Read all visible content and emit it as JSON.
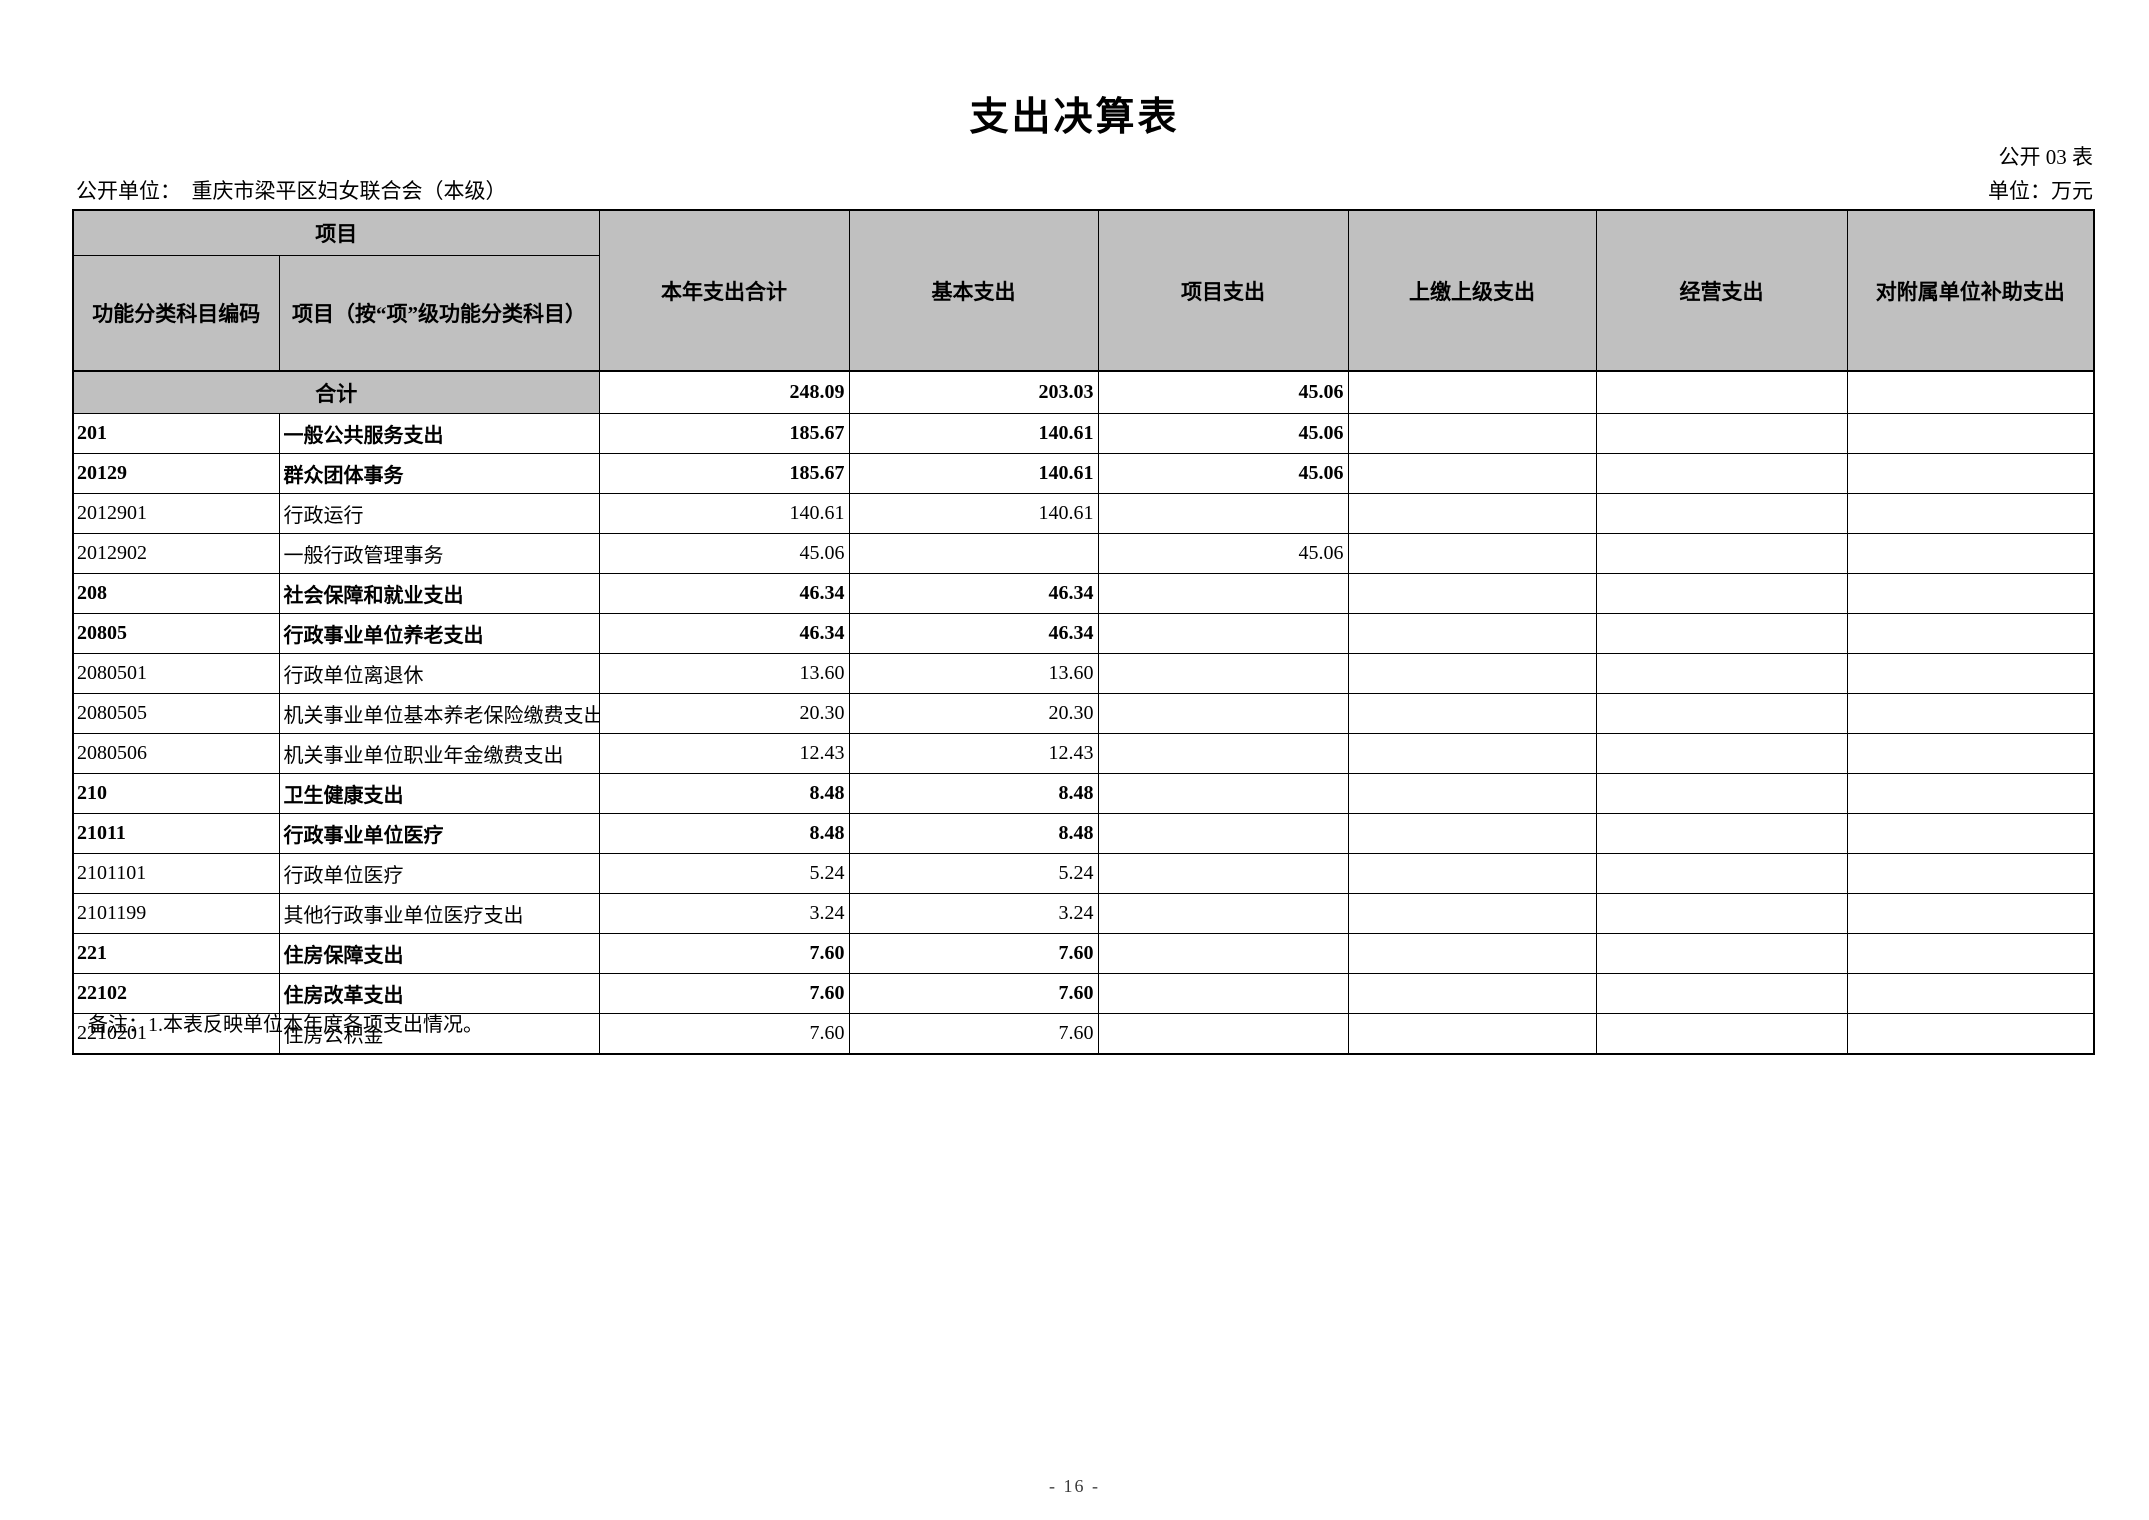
{
  "page": {
    "title": "支出决算表",
    "table_code": "公开 03 表",
    "publish_unit_line": "公开单位：　重庆市梁平区妇女联合会（本级）",
    "unit_of_measure": "单位：万元",
    "footer_note": "备注：1.本表反映单位本年度各项支出情况。",
    "page_number": "- 16 -"
  },
  "colors": {
    "header_bg": "#c0c0c0",
    "border": "#000000",
    "page_bg": "#ffffff"
  },
  "table": {
    "header": {
      "project_group": "项目",
      "col_code": "功能分类科目编码",
      "col_item": "项目（按“项”级功能分类科目）",
      "col_year_total": "本年支出合计",
      "col_basic": "基本支出",
      "col_project": "项目支出",
      "col_upper": "上缴上级支出",
      "col_operating": "经营支出",
      "col_subsidy": "对附属单位补助支出"
    },
    "total_row": {
      "label": "合计",
      "year_total": "248.09",
      "basic": "203.03",
      "project": "45.06",
      "upper": "",
      "operating": "",
      "subsidy": ""
    },
    "rows": [
      {
        "code": "201",
        "name": "一般公共服务支出",
        "year_total": "185.67",
        "basic": "140.61",
        "project": "45.06",
        "upper": "",
        "operating": "",
        "subsidy": "",
        "bold": true
      },
      {
        "code": "20129",
        "name": "群众团体事务",
        "year_total": "185.67",
        "basic": "140.61",
        "project": "45.06",
        "upper": "",
        "operating": "",
        "subsidy": "",
        "bold": true
      },
      {
        "code": "2012901",
        "name": "行政运行",
        "year_total": "140.61",
        "basic": "140.61",
        "project": "",
        "upper": "",
        "operating": "",
        "subsidy": "",
        "bold": false
      },
      {
        "code": "2012902",
        "name": "一般行政管理事务",
        "year_total": "45.06",
        "basic": "",
        "project": "45.06",
        "upper": "",
        "operating": "",
        "subsidy": "",
        "bold": false
      },
      {
        "code": "208",
        "name": "社会保障和就业支出",
        "year_total": "46.34",
        "basic": "46.34",
        "project": "",
        "upper": "",
        "operating": "",
        "subsidy": "",
        "bold": true
      },
      {
        "code": "20805",
        "name": "行政事业单位养老支出",
        "year_total": "46.34",
        "basic": "46.34",
        "project": "",
        "upper": "",
        "operating": "",
        "subsidy": "",
        "bold": true
      },
      {
        "code": "2080501",
        "name": "行政单位离退休",
        "year_total": "13.60",
        "basic": "13.60",
        "project": "",
        "upper": "",
        "operating": "",
        "subsidy": "",
        "bold": false
      },
      {
        "code": "2080505",
        "name": "机关事业单位基本养老保险缴费支出",
        "year_total": "20.30",
        "basic": "20.30",
        "project": "",
        "upper": "",
        "operating": "",
        "subsidy": "",
        "bold": false
      },
      {
        "code": "2080506",
        "name": "机关事业单位职业年金缴费支出",
        "year_total": "12.43",
        "basic": "12.43",
        "project": "",
        "upper": "",
        "operating": "",
        "subsidy": "",
        "bold": false
      },
      {
        "code": "210",
        "name": "卫生健康支出",
        "year_total": "8.48",
        "basic": "8.48",
        "project": "",
        "upper": "",
        "operating": "",
        "subsidy": "",
        "bold": true
      },
      {
        "code": "21011",
        "name": "行政事业单位医疗",
        "year_total": "8.48",
        "basic": "8.48",
        "project": "",
        "upper": "",
        "operating": "",
        "subsidy": "",
        "bold": true
      },
      {
        "code": "2101101",
        "name": "行政单位医疗",
        "year_total": "5.24",
        "basic": "5.24",
        "project": "",
        "upper": "",
        "operating": "",
        "subsidy": "",
        "bold": false
      },
      {
        "code": "2101199",
        "name": "其他行政事业单位医疗支出",
        "year_total": "3.24",
        "basic": "3.24",
        "project": "",
        "upper": "",
        "operating": "",
        "subsidy": "",
        "bold": false
      },
      {
        "code": "221",
        "name": "住房保障支出",
        "year_total": "7.60",
        "basic": "7.60",
        "project": "",
        "upper": "",
        "operating": "",
        "subsidy": "",
        "bold": true
      },
      {
        "code": "22102",
        "name": "住房改革支出",
        "year_total": "7.60",
        "basic": "7.60",
        "project": "",
        "upper": "",
        "operating": "",
        "subsidy": "",
        "bold": true
      },
      {
        "code": "2210201",
        "name": "住房公积金",
        "year_total": "7.60",
        "basic": "7.60",
        "project": "",
        "upper": "",
        "operating": "",
        "subsidy": "",
        "bold": false
      }
    ]
  }
}
